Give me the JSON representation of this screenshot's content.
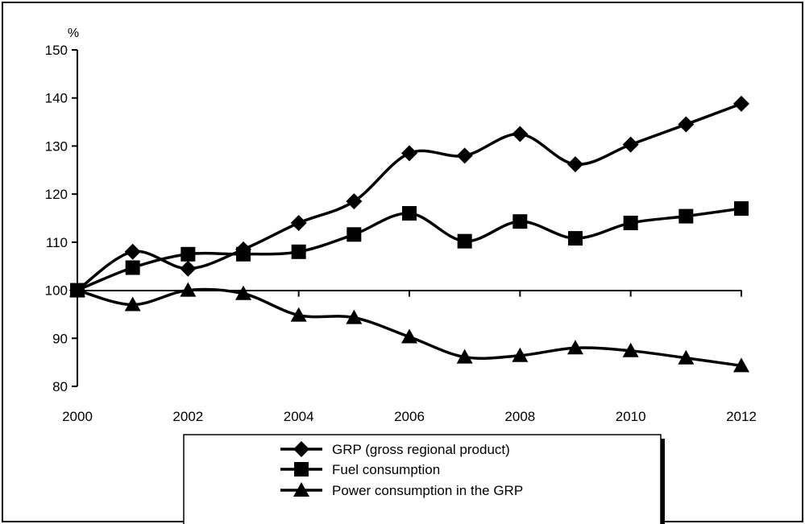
{
  "chart_data": {
    "type": "line",
    "title": "",
    "ylabel": "%",
    "xlabel": "",
    "x": [
      2000,
      2001,
      2002,
      2003,
      2004,
      2005,
      2006,
      2007,
      2008,
      2009,
      2010,
      2011,
      2012
    ],
    "xticks": [
      2000,
      2002,
      2004,
      2006,
      2008,
      2010,
      2012
    ],
    "xlim": [
      2000,
      2012
    ],
    "ylim": [
      80,
      150
    ],
    "yticks": [
      80,
      90,
      100,
      110,
      120,
      130,
      140,
      150
    ],
    "grid": false,
    "legend_position": "bottom",
    "series": [
      {
        "name": "GRP (gross regional product)",
        "marker": "diamond",
        "values": [
          100,
          108,
          104.5,
          108.5,
          114,
          118.5,
          128.5,
          128,
          132.5,
          126.2,
          130.3,
          134.5,
          138.8
        ]
      },
      {
        "name": "Fuel consumption",
        "marker": "square",
        "values": [
          100,
          104.7,
          107.5,
          107.5,
          108,
          111.6,
          116,
          110.2,
          114.3,
          110.8,
          114,
          115.4,
          117
        ]
      },
      {
        "name": "Power consumption in the GRP",
        "marker": "triangle",
        "values": [
          100,
          97,
          100,
          99.3,
          94.8,
          94.3,
          90.3,
          86.1,
          86.4,
          88,
          87.4,
          85.9,
          84.3
        ]
      }
    ]
  },
  "colors": {
    "line": "#000000",
    "background": "#ffffff"
  }
}
